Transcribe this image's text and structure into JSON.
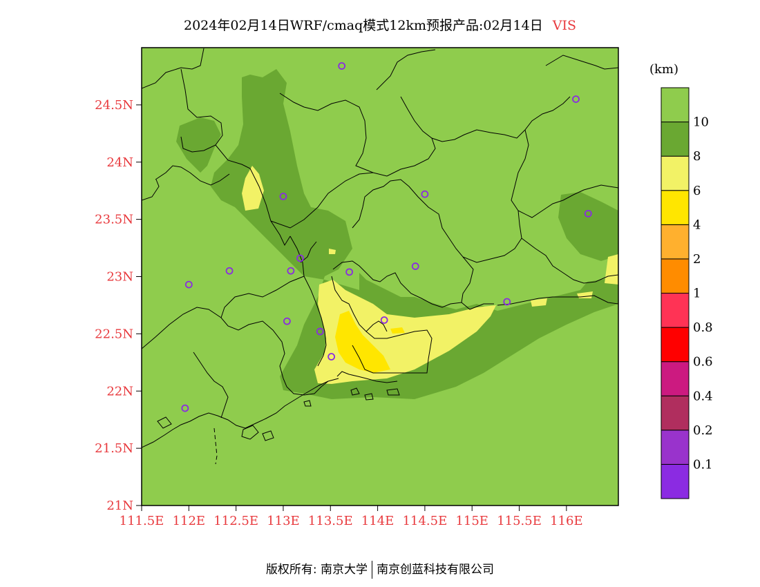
{
  "title": "2024年02月14日WRF/cmaq模式12km预报产品:02月14日",
  "variable": "VIS",
  "unit": "(km)",
  "footer": {
    "left": "版权所有: 南京大学",
    "right": "南京创蓝科技有限公司"
  },
  "axes": {
    "x_ticks": [
      "111.5E",
      "112E",
      "112.5E",
      "113E",
      "113.5E",
      "114E",
      "114.5E",
      "115E",
      "115.5E",
      "116E"
    ],
    "x_values": [
      111.5,
      112,
      112.5,
      113,
      113.5,
      114,
      114.5,
      115,
      115.5,
      116
    ],
    "y_ticks": [
      "21N",
      "21.5N",
      "22N",
      "22.5N",
      "23N",
      "23.5N",
      "24N",
      "24.5N"
    ],
    "y_values": [
      21,
      21.5,
      22,
      22.5,
      23,
      23.5,
      24,
      24.5
    ],
    "x_range": [
      111.5,
      116.55
    ],
    "y_range": [
      21,
      25.0
    ]
  },
  "colorbar": {
    "colors": [
      "#8b2be2",
      "#9933cc",
      "#b02e5e",
      "#cc1a80",
      "#ff0000",
      "#ff3355",
      "#ff8c00",
      "#ffb02e",
      "#ffe600",
      "#f2f266",
      "#6aa832",
      "#8fcc4d"
    ],
    "labels": [
      "0.1",
      "0.2",
      "0.4",
      "0.6",
      "0.8",
      "1",
      "2",
      "4",
      "6",
      "8",
      "10"
    ]
  },
  "fill_colors": {
    "base": "#8fcc4d",
    "band_8_10": "#6aa832",
    "band_6_8": "#f2f266",
    "band_4_6": "#ffe600"
  },
  "stations": [
    [
      113.62,
      24.84
    ],
    [
      116.1,
      24.55
    ],
    [
      113.0,
      23.7
    ],
    [
      114.5,
      23.72
    ],
    [
      116.23,
      23.55
    ],
    [
      113.18,
      23.16
    ],
    [
      112.43,
      23.05
    ],
    [
      113.08,
      23.05
    ],
    [
      113.7,
      23.04
    ],
    [
      114.4,
      23.09
    ],
    [
      112.0,
      22.93
    ],
    [
      115.37,
      22.78
    ],
    [
      113.04,
      22.61
    ],
    [
      114.07,
      22.62
    ],
    [
      113.39,
      22.52
    ],
    [
      113.51,
      22.3
    ],
    [
      111.96,
      21.85
    ]
  ]
}
